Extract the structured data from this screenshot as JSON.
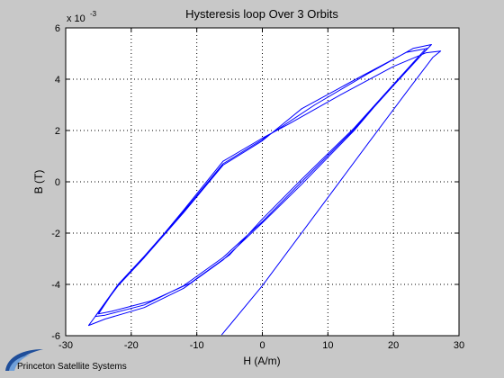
{
  "chart_data": {
    "type": "line",
    "title": "Hysteresis loop Over 3 Orbits",
    "xlabel": "H (A/m)",
    "ylabel": "B (T)",
    "y_multiplier_base": "x 10",
    "y_multiplier_exp": "-3",
    "xlim": [
      -30,
      30
    ],
    "ylim": [
      -6,
      6
    ],
    "xticks": [
      -30,
      -20,
      -10,
      0,
      10,
      20,
      30
    ],
    "yticks": [
      -6,
      -4,
      -2,
      0,
      2,
      4,
      6
    ],
    "grid": true,
    "line_color": "#0000ff",
    "series": [
      {
        "x": [
          -6.2,
          0,
          8,
          16,
          22,
          26,
          27.2,
          25,
          20,
          12,
          4,
          0,
          -6,
          -12,
          -18,
          -22,
          -26.5,
          -24,
          -18,
          -12,
          -6,
          0,
          6,
          14,
          20,
          25.8,
          23,
          16,
          8,
          0,
          -6,
          -12,
          -18,
          -22,
          -25.5,
          -24,
          -18,
          -12,
          -6,
          0,
          6,
          14,
          20,
          25.2,
          22,
          15,
          6,
          0,
          -6,
          -12,
          -18,
          -22,
          -25,
          -23,
          -17,
          -11,
          -5,
          0,
          6,
          14,
          20,
          24.8
        ],
        "y": [
          -5.97,
          -4.05,
          -1.3,
          1.45,
          3.5,
          4.85,
          5.1,
          5.03,
          4.5,
          3.4,
          2.25,
          1.7,
          0.8,
          -1.1,
          -2.95,
          -4.05,
          -5.6,
          -5.35,
          -4.9,
          -4.15,
          -3.05,
          -1.6,
          -0.1,
          2.0,
          3.8,
          5.35,
          5.2,
          4.2,
          3.0,
          1.65,
          0.7,
          -1.15,
          -2.9,
          -4.0,
          -5.25,
          -5.2,
          -4.8,
          -4.05,
          -2.95,
          -1.55,
          0.0,
          2.05,
          3.75,
          5.2,
          5.05,
          4.1,
          2.85,
          1.6,
          0.65,
          -1.2,
          -2.95,
          -4.0,
          -5.15,
          -5.05,
          -4.65,
          -3.95,
          -2.85,
          -1.45,
          0.1,
          2.1,
          3.8,
          5.15
        ]
      }
    ]
  },
  "footer": {
    "logo_text": "Princeton Satellite Systems"
  }
}
